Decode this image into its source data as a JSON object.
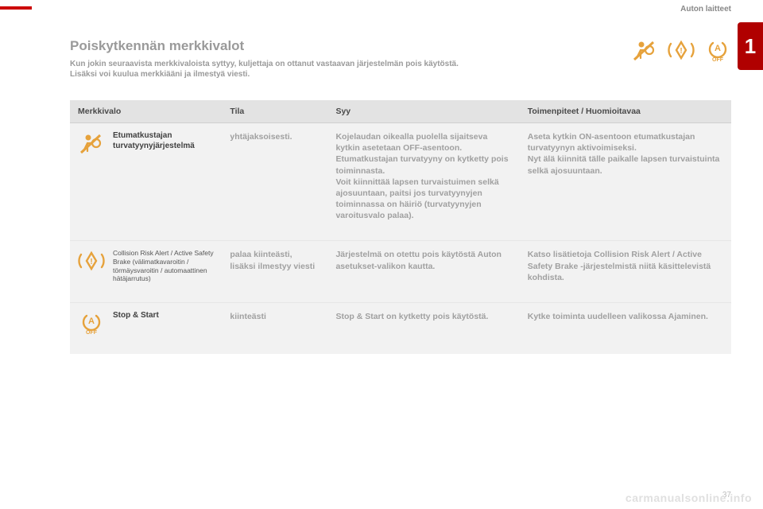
{
  "colors": {
    "accent_red": "#b00000",
    "icon_amber": "#e6a23c",
    "header_bg": "#e3e3e3",
    "body_bg": "#f2f2f2",
    "muted_text": "#9a9a9a",
    "label_text": "#3f3f3f",
    "cell_text": "#a0a0a0"
  },
  "section_label": "Auton laitteet",
  "chapter_number": "1",
  "title": "Poiskytkennän merkkivalot",
  "intro_line1": "Kun jokin seuraavista merkkivaloista syttyy, kuljettaja on ottanut vastaavan järjestelmän pois käytöstä.",
  "intro_line2": "Lisäksi voi kuulua merkkiääni ja ilmestyä viesti.",
  "table": {
    "columns": {
      "indicator": "Merkkivalo",
      "state": "Tila",
      "cause": "Syy",
      "action": "Toimenpiteet / Huomioitavaa"
    },
    "rows": [
      {
        "icon": "airbag-off",
        "label": "Etumatkustajan turvatyynyjärjestelmä",
        "state": "yhtäjaksoisesti.",
        "cause": "Kojelaudan oikealla puolella sijaitseva kytkin asetetaan OFF-asentoon.\nEtumatkustajan turvatyyny on kytketty pois toiminnasta.\nVoit kiinnittää lapsen turvaistuimen selkä ajosuuntaan, paitsi jos turvatyynyjen toiminnassa on häiriö (turvatyynyjen varoitusvalo palaa).",
        "action": "Aseta kytkin ON-asentoon etumatkustajan turvatyynyn aktivoimiseksi.\nNyt älä kiinnitä tälle paikalle lapsen turvaistuinta selkä ajosuuntaan."
      },
      {
        "icon": "collision-off",
        "label": "Collision Risk Alert / Active Safety Brake (välimatkavaroitin / törmäysvaroitin / automaattinen hätäjarrutus)",
        "label_small": true,
        "state": "palaa kiinteästi, lisäksi ilmestyy viesti",
        "cause": "Järjestelmä on otettu pois käytöstä Auton asetukset-valikon kautta.",
        "action": "Katso lisätietoja Collision Risk Alert / Active Safety Brake -järjestelmistä niitä käsittelevistä kohdista."
      },
      {
        "icon": "stop-start-off",
        "label": "Stop & Start",
        "state": "kiinteästi",
        "cause": "Stop & Start on kytketty pois käytöstä.",
        "action": "Kytke toiminta uudelleen valikossa Ajaminen."
      }
    ]
  },
  "header_icons": [
    "airbag-off",
    "collision-off",
    "stop-start-off"
  ],
  "footer_url": "carmanualsonline.info",
  "page_number": "37"
}
